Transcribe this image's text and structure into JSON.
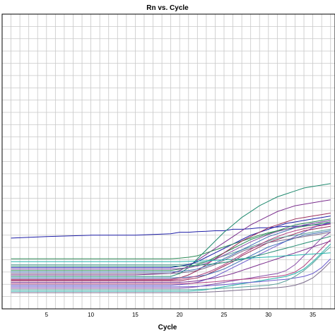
{
  "chart_data": {
    "type": "line",
    "title": "Rn vs. Cycle",
    "xlabel": "Cycle",
    "ylabel": "",
    "xlim": [
      0,
      37.5
    ],
    "ylim": [
      0,
      10
    ],
    "x_ticks": [
      5,
      10,
      15,
      20,
      25,
      30,
      35
    ],
    "grid": true,
    "legend": "none",
    "colors": [
      "#1f1fa8",
      "#7b2f8e",
      "#2e8b57",
      "#6a5acd",
      "#9b2d5c",
      "#3f6fb5",
      "#5aa09a",
      "#8a4fa8",
      "#20b2aa",
      "#7a6a8a",
      "#b04080",
      "#228b70"
    ],
    "series": [
      {
        "x": [
          1,
          5,
          10,
          15,
          19,
          20,
          21,
          22,
          23,
          24,
          25,
          26,
          27,
          28,
          29,
          30,
          31,
          32,
          33,
          34,
          35,
          36,
          37
        ],
        "y": [
          2.4,
          2.45,
          2.5,
          2.5,
          2.55,
          2.6,
          2.6,
          2.62,
          2.63,
          2.65,
          2.65,
          2.7,
          2.7,
          2.72,
          2.75,
          2.75,
          2.78,
          2.8,
          2.8,
          2.82,
          2.85,
          2.85,
          2.9
        ]
      },
      {
        "x": [
          1,
          5,
          10,
          15,
          19,
          20,
          21,
          22,
          23,
          24,
          25,
          26,
          27,
          28,
          29,
          30,
          31,
          32,
          33,
          34,
          35,
          36,
          37
        ],
        "y": [
          1.15,
          1.15,
          1.15,
          1.15,
          1.2,
          1.3,
          1.45,
          1.65,
          1.85,
          2.05,
          2.25,
          2.45,
          2.65,
          2.85,
          3.0,
          3.15,
          3.3,
          3.4,
          3.5,
          3.55,
          3.6,
          3.65,
          3.7
        ]
      },
      {
        "x": [
          1,
          5,
          10,
          15,
          19,
          20,
          21,
          22,
          23,
          24,
          25,
          26,
          27,
          28,
          29,
          30,
          31,
          32,
          33,
          34,
          35,
          36,
          37
        ],
        "y": [
          1.3,
          1.3,
          1.3,
          1.3,
          1.3,
          1.35,
          1.4,
          1.5,
          1.6,
          1.75,
          1.9,
          2.05,
          2.2,
          2.35,
          2.45,
          2.55,
          2.65,
          2.75,
          2.85,
          2.9,
          2.95,
          3.0,
          3.05
        ]
      },
      {
        "x": [
          1,
          5,
          10,
          15,
          19,
          20,
          21,
          22,
          23,
          24,
          25,
          26,
          27,
          28,
          29,
          30,
          31,
          32,
          33,
          34,
          35,
          36,
          37
        ],
        "y": [
          0.8,
          0.8,
          0.8,
          0.8,
          0.8,
          0.82,
          0.85,
          0.9,
          1.0,
          1.1,
          1.25,
          1.4,
          1.55,
          1.7,
          1.85,
          2.0,
          2.15,
          2.3,
          2.45,
          2.6,
          2.75,
          2.85,
          2.95
        ]
      },
      {
        "x": [
          1,
          5,
          10,
          15,
          19,
          20,
          21,
          22,
          23,
          24,
          25,
          26,
          27,
          28,
          29,
          30,
          31,
          32,
          33,
          34,
          35,
          36,
          37
        ],
        "y": [
          0.95,
          0.95,
          0.95,
          0.95,
          0.95,
          0.95,
          1.0,
          1.05,
          1.15,
          1.3,
          1.45,
          1.6,
          1.8,
          1.95,
          2.1,
          2.25,
          2.35,
          2.45,
          2.55,
          2.65,
          2.7,
          2.75,
          2.8
        ]
      },
      {
        "x": [
          1,
          5,
          10,
          15,
          19,
          20,
          21,
          22,
          23,
          24,
          25,
          26,
          27,
          28,
          29,
          30,
          31,
          32,
          33,
          34,
          35,
          36,
          37
        ],
        "y": [
          1.05,
          1.05,
          1.05,
          1.05,
          1.05,
          1.06,
          1.08,
          1.1,
          1.15,
          1.25,
          1.35,
          1.5,
          1.65,
          1.8,
          1.95,
          2.1,
          2.2,
          2.3,
          2.4,
          2.5,
          2.55,
          2.6,
          2.65
        ]
      },
      {
        "x": [
          1,
          5,
          10,
          15,
          19,
          20,
          21,
          22,
          23,
          24,
          25,
          26,
          27,
          28,
          29,
          30,
          31,
          32,
          33,
          34,
          35,
          36,
          37
        ],
        "y": [
          1.5,
          1.5,
          1.5,
          1.5,
          1.5,
          1.5,
          1.52,
          1.55,
          1.6,
          1.7,
          1.8,
          1.9,
          2.0,
          2.1,
          2.2,
          2.3,
          2.4,
          2.45,
          2.5,
          2.55,
          2.6,
          2.65,
          2.7
        ]
      },
      {
        "x": [
          1,
          5,
          10,
          15,
          19,
          20,
          21,
          22,
          23,
          24,
          25,
          26,
          27,
          28,
          29,
          30,
          31,
          32,
          33,
          34,
          35,
          36,
          37
        ],
        "y": [
          0.7,
          0.7,
          0.7,
          0.7,
          0.7,
          0.7,
          0.72,
          0.75,
          0.8,
          0.85,
          0.9,
          0.95,
          1.0,
          1.05,
          1.1,
          1.15,
          1.2,
          1.3,
          1.5,
          1.8,
          2.1,
          2.4,
          2.6
        ]
      },
      {
        "x": [
          1,
          5,
          10,
          15,
          19,
          20,
          21,
          22,
          23,
          24,
          25,
          26,
          27,
          28,
          29,
          30,
          31,
          32,
          33,
          34,
          35,
          36,
          37
        ],
        "y": [
          0.6,
          0.6,
          0.6,
          0.6,
          0.6,
          0.6,
          0.6,
          0.62,
          0.65,
          0.7,
          0.75,
          0.8,
          0.85,
          0.9,
          0.95,
          1.0,
          1.05,
          1.1,
          1.2,
          1.35,
          1.6,
          1.9,
          2.2
        ]
      },
      {
        "x": [
          1,
          5,
          10,
          15,
          19,
          20,
          21,
          22,
          23,
          24,
          25,
          26,
          27,
          28,
          29,
          30,
          31,
          32,
          33,
          34,
          35,
          36,
          37
        ],
        "y": [
          1.2,
          1.2,
          1.2,
          1.2,
          1.2,
          1.22,
          1.25,
          1.3,
          1.4,
          1.5,
          1.65,
          1.8,
          1.95,
          2.05,
          2.15,
          2.25,
          2.3,
          2.35,
          2.4,
          2.45,
          2.5,
          2.55,
          2.6
        ]
      },
      {
        "x": [
          1,
          5,
          10,
          15,
          19,
          20,
          21,
          22,
          23,
          24,
          25,
          26,
          27,
          28,
          29,
          30,
          31,
          32,
          33,
          34,
          35,
          36,
          37
        ],
        "y": [
          0.85,
          0.85,
          0.85,
          0.85,
          0.85,
          0.85,
          0.86,
          0.88,
          0.9,
          0.92,
          0.95,
          0.98,
          1.0,
          1.02,
          1.05,
          1.08,
          1.1,
          1.15,
          1.25,
          1.45,
          1.75,
          2.05,
          2.35
        ]
      },
      {
        "x": [
          1,
          5,
          10,
          15,
          19,
          20,
          21,
          22,
          23,
          24,
          25,
          26,
          27,
          28,
          29,
          30,
          31,
          32,
          33,
          34,
          35,
          36,
          37
        ],
        "y": [
          1.1,
          1.1,
          1.1,
          1.1,
          1.1,
          1.2,
          1.4,
          1.7,
          2.0,
          2.3,
          2.6,
          2.85,
          3.1,
          3.3,
          3.5,
          3.65,
          3.8,
          3.9,
          4.0,
          4.1,
          4.15,
          4.2,
          4.25
        ]
      },
      {
        "x": [
          1,
          5,
          10,
          15,
          19,
          20,
          21,
          22,
          23,
          24,
          25,
          26,
          27,
          28,
          29,
          30,
          31,
          32,
          33,
          34,
          35,
          36,
          37
        ],
        "y": [
          1.4,
          1.4,
          1.4,
          1.4,
          1.4,
          1.45,
          1.5,
          1.6,
          1.75,
          1.9,
          2.05,
          2.2,
          2.35,
          2.5,
          2.6,
          2.7,
          2.8,
          2.9,
          2.95,
          3.0,
          3.05,
          3.1,
          3.15
        ]
      },
      {
        "x": [
          1,
          5,
          10,
          15,
          19,
          20,
          21,
          22,
          23,
          24,
          25,
          26,
          27,
          28,
          29,
          30,
          31,
          32,
          33,
          34,
          35,
          36,
          37
        ],
        "y": [
          0.9,
          0.9,
          0.9,
          0.9,
          0.9,
          0.9,
          0.92,
          0.95,
          1.0,
          1.05,
          1.12,
          1.2,
          1.3,
          1.4,
          1.5,
          1.6,
          1.7,
          1.8,
          1.9,
          2.0,
          2.1,
          2.2,
          2.3
        ]
      },
      {
        "x": [
          1,
          5,
          10,
          15,
          19,
          20,
          21,
          22,
          23,
          24,
          25,
          26,
          27,
          28,
          29,
          30,
          31,
          32,
          33,
          34,
          35,
          36,
          37
        ],
        "y": [
          1.7,
          1.7,
          1.7,
          1.7,
          1.7,
          1.72,
          1.75,
          1.8,
          1.9,
          2.0,
          2.1,
          2.2,
          2.3,
          2.4,
          2.5,
          2.58,
          2.65,
          2.7,
          2.75,
          2.8,
          2.85,
          2.9,
          2.95
        ]
      },
      {
        "x": [
          1,
          5,
          10,
          15,
          19,
          20,
          21,
          22,
          23,
          24,
          25,
          26,
          27,
          28,
          29,
          30,
          31,
          32,
          33,
          34,
          35,
          36,
          37
        ],
        "y": [
          0.75,
          0.75,
          0.75,
          0.75,
          0.75,
          0.75,
          0.75,
          0.76,
          0.78,
          0.8,
          0.82,
          0.85,
          0.88,
          0.9,
          0.92,
          0.95,
          0.98,
          1.0,
          1.05,
          1.1,
          1.2,
          1.4,
          1.7
        ]
      },
      {
        "x": [
          1,
          5,
          10,
          15,
          19,
          20,
          21,
          22,
          23,
          24,
          25,
          26,
          27,
          28,
          29,
          30,
          31,
          32,
          33,
          34,
          35,
          36,
          37
        ],
        "y": [
          1.0,
          1.0,
          1.0,
          1.0,
          1.0,
          1.05,
          1.15,
          1.3,
          1.5,
          1.7,
          1.9,
          2.1,
          2.3,
          2.45,
          2.6,
          2.75,
          2.85,
          2.95,
          3.05,
          3.1,
          3.15,
          3.2,
          3.25
        ]
      },
      {
        "x": [
          1,
          5,
          10,
          15,
          19,
          20,
          21,
          22,
          23,
          24,
          25,
          26,
          27,
          28,
          29,
          30,
          31,
          32,
          33,
          34,
          35,
          36,
          37
        ],
        "y": [
          1.25,
          1.25,
          1.25,
          1.25,
          1.25,
          1.27,
          1.3,
          1.35,
          1.45,
          1.55,
          1.7,
          1.85,
          2.0,
          2.15,
          2.3,
          2.45,
          2.55,
          2.65,
          2.75,
          2.85,
          2.9,
          2.95,
          3.0
        ]
      },
      {
        "x": [
          1,
          5,
          10,
          15,
          19,
          20,
          21,
          22,
          23,
          24,
          25,
          26,
          27,
          28,
          29,
          30,
          31,
          32,
          33,
          34,
          35,
          36,
          37
        ],
        "y": [
          0.65,
          0.65,
          0.65,
          0.65,
          0.65,
          0.65,
          0.65,
          0.66,
          0.67,
          0.68,
          0.7,
          0.72,
          0.74,
          0.76,
          0.78,
          0.8,
          0.85,
          0.95,
          1.1,
          1.3,
          1.55,
          1.85,
          2.1
        ]
      },
      {
        "x": [
          1,
          5,
          10,
          15,
          19,
          20,
          21,
          22,
          23,
          24,
          25,
          26,
          27,
          28,
          29,
          30,
          31,
          32,
          33,
          34,
          35,
          36,
          37
        ],
        "y": [
          1.35,
          1.35,
          1.35,
          1.35,
          1.35,
          1.37,
          1.4,
          1.45,
          1.55,
          1.68,
          1.82,
          1.97,
          2.12,
          2.27,
          2.4,
          2.52,
          2.62,
          2.7,
          2.78,
          2.84,
          2.9,
          2.95,
          3.0
        ]
      },
      {
        "x": [
          1,
          5,
          10,
          15,
          19,
          20,
          21,
          22,
          23,
          24,
          25,
          26,
          27,
          28,
          29,
          30,
          31,
          32,
          33,
          34,
          35,
          36,
          37
        ],
        "y": [
          1.6,
          1.6,
          1.6,
          1.6,
          1.6,
          1.6,
          1.61,
          1.62,
          1.63,
          1.65,
          1.66,
          1.68,
          1.7,
          1.72,
          1.74,
          1.76,
          1.78,
          1.8,
          1.82,
          1.84,
          1.86,
          1.88,
          1.9
        ]
      },
      {
        "x": [
          1,
          5,
          10,
          15,
          19,
          20,
          21,
          22,
          23,
          24,
          25,
          26,
          27,
          28,
          29,
          30,
          31,
          32,
          33,
          34,
          35,
          36,
          37
        ],
        "y": [
          0.55,
          0.55,
          0.55,
          0.55,
          0.55,
          0.55,
          0.55,
          0.56,
          0.57,
          0.58,
          0.6,
          0.62,
          0.64,
          0.66,
          0.68,
          0.7,
          0.72,
          0.75,
          0.8,
          0.9,
          1.05,
          1.3,
          1.6
        ]
      },
      {
        "x": [
          1,
          5,
          10,
          15,
          19,
          20,
          21,
          22,
          23,
          24,
          25,
          26,
          27,
          28,
          29,
          30,
          31,
          32,
          33,
          34,
          35,
          36,
          37
        ],
        "y": [
          0.98,
          0.98,
          0.98,
          0.98,
          0.98,
          1.0,
          1.05,
          1.12,
          1.22,
          1.35,
          1.5,
          1.67,
          1.85,
          2.02,
          2.18,
          2.33,
          2.45,
          2.56,
          2.65,
          2.72,
          2.78,
          2.83,
          2.88
        ]
      },
      {
        "x": [
          1,
          5,
          10,
          15,
          19,
          20,
          21,
          22,
          23,
          24,
          25,
          26,
          27,
          28,
          29,
          30,
          31,
          32,
          33,
          34,
          35,
          36,
          37
        ],
        "y": [
          1.45,
          1.45,
          1.45,
          1.45,
          1.45,
          1.45,
          1.46,
          1.48,
          1.5,
          1.53,
          1.57,
          1.62,
          1.68,
          1.75,
          1.82,
          1.9,
          1.98,
          2.06,
          2.14,
          2.22,
          2.3,
          2.38,
          2.46
        ]
      }
    ]
  }
}
